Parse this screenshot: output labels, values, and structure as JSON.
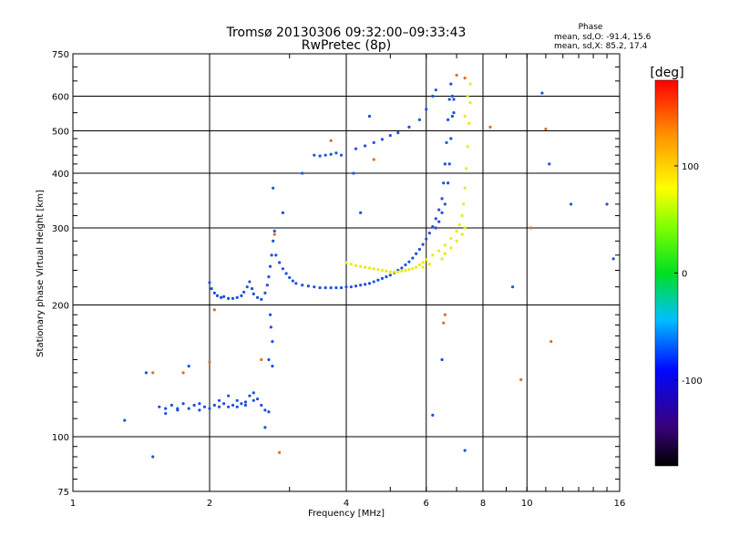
{
  "chart_data": {
    "type": "scatter",
    "title": "Tromsø 20130306 09:32:00–09:33:43",
    "subtitle": "RwPretec (8p)",
    "xlabel": "Frequency [MHz]",
    "ylabel": "Stationary phase Virtual Height [km]",
    "x_scale": "log",
    "y_scale": "log",
    "xlim": [
      1,
      16
    ],
    "ylim": [
      75,
      750
    ],
    "x_ticks": [
      1,
      2,
      4,
      6,
      8,
      10,
      16
    ],
    "y_ticks": [
      75,
      100,
      200,
      300,
      400,
      500,
      600,
      750
    ],
    "x_gridlines": [
      2,
      4,
      6,
      8,
      10
    ],
    "y_gridlines": [
      100,
      200,
      300,
      400,
      500,
      600
    ],
    "phase_stats": {
      "title": "Phase",
      "line_o": "mean, sd,O: -91.4, 15.6",
      "line_x": "mean, sd,X: 85.2, 17.4"
    },
    "colorbar": {
      "label": "[deg]",
      "ticks": [
        100,
        0,
        -100
      ],
      "range": [
        -180,
        180
      ],
      "colormap": "rainbow"
    },
    "series": [
      {
        "mode": "O",
        "color": "#1e50e0",
        "phase": -91,
        "points": [
          [
            1.55,
            117
          ],
          [
            1.6,
            116
          ],
          [
            1.65,
            118
          ],
          [
            1.7,
            116
          ],
          [
            1.75,
            119
          ],
          [
            1.8,
            116
          ],
          [
            1.85,
            118
          ],
          [
            1.9,
            115
          ],
          [
            1.95,
            117
          ],
          [
            2.0,
            116
          ],
          [
            2.05,
            118
          ],
          [
            2.1,
            117
          ],
          [
            2.15,
            119
          ],
          [
            2.2,
            117
          ],
          [
            2.25,
            118
          ],
          [
            2.3,
            117
          ],
          [
            2.35,
            119
          ],
          [
            2.4,
            120
          ],
          [
            2.45,
            124
          ],
          [
            2.5,
            126
          ],
          [
            2.55,
            122
          ],
          [
            2.6,
            118
          ],
          [
            2.65,
            115
          ],
          [
            2.7,
            114
          ],
          [
            1.6,
            113
          ],
          [
            1.7,
            115
          ],
          [
            1.9,
            119
          ],
          [
            2.1,
            121
          ],
          [
            2.2,
            124
          ],
          [
            2.3,
            121
          ],
          [
            2.4,
            118
          ],
          [
            2.5,
            121
          ],
          [
            2.0,
            225
          ],
          [
            2.02,
            218
          ],
          [
            2.05,
            213
          ],
          [
            2.08,
            210
          ],
          [
            2.12,
            208
          ],
          [
            2.15,
            209
          ],
          [
            2.2,
            207
          ],
          [
            2.25,
            207
          ],
          [
            2.3,
            208
          ],
          [
            2.35,
            210
          ],
          [
            2.38,
            214
          ],
          [
            2.42,
            220
          ],
          [
            2.45,
            226
          ],
          [
            2.48,
            218
          ],
          [
            2.5,
            212
          ],
          [
            2.55,
            208
          ],
          [
            2.6,
            206
          ],
          [
            2.65,
            213
          ],
          [
            2.68,
            222
          ],
          [
            2.7,
            232
          ],
          [
            2.72,
            245
          ],
          [
            2.74,
            260
          ],
          [
            2.76,
            280
          ],
          [
            2.78,
            295
          ],
          [
            2.72,
            190
          ],
          [
            2.73,
            178
          ],
          [
            2.75,
            165
          ],
          [
            2.7,
            150
          ],
          [
            2.8,
            260
          ],
          [
            2.85,
            250
          ],
          [
            2.9,
            242
          ],
          [
            2.95,
            236
          ],
          [
            3.0,
            231
          ],
          [
            3.05,
            227
          ],
          [
            3.1,
            224
          ],
          [
            3.2,
            222
          ],
          [
            3.3,
            221
          ],
          [
            3.4,
            220
          ],
          [
            3.5,
            219
          ],
          [
            3.6,
            219
          ],
          [
            3.7,
            219
          ],
          [
            3.8,
            219
          ],
          [
            3.9,
            219
          ],
          [
            4.0,
            220
          ],
          [
            4.1,
            220
          ],
          [
            4.2,
            221
          ],
          [
            4.3,
            222
          ],
          [
            4.4,
            223
          ],
          [
            4.5,
            224
          ],
          [
            4.6,
            226
          ],
          [
            4.7,
            228
          ],
          [
            4.8,
            230
          ],
          [
            4.9,
            232
          ],
          [
            5.0,
            234
          ],
          [
            5.1,
            237
          ],
          [
            5.2,
            240
          ],
          [
            5.3,
            243
          ],
          [
            5.4,
            247
          ],
          [
            5.5,
            251
          ],
          [
            5.6,
            256
          ],
          [
            5.7,
            262
          ],
          [
            5.8,
            268
          ],
          [
            5.9,
            275
          ],
          [
            6.0,
            283
          ],
          [
            6.1,
            292
          ],
          [
            6.2,
            302
          ],
          [
            6.3,
            315
          ],
          [
            6.4,
            330
          ],
          [
            6.5,
            350
          ],
          [
            6.55,
            380
          ],
          [
            6.6,
            420
          ],
          [
            6.65,
            470
          ],
          [
            6.7,
            530
          ],
          [
            6.75,
            590
          ],
          [
            6.8,
            640
          ],
          [
            6.85,
            600
          ],
          [
            6.9,
            550
          ],
          [
            3.4,
            440
          ],
          [
            3.5,
            438
          ],
          [
            3.6,
            440
          ],
          [
            3.7,
            442
          ],
          [
            3.8,
            445
          ],
          [
            3.9,
            440
          ],
          [
            4.2,
            455
          ],
          [
            4.4,
            462
          ],
          [
            4.6,
            470
          ],
          [
            4.8,
            478
          ],
          [
            5.0,
            488
          ],
          [
            5.2,
            495
          ],
          [
            5.5,
            510
          ],
          [
            5.8,
            530
          ],
          [
            6.0,
            560
          ],
          [
            6.2,
            600
          ],
          [
            6.3,
            620
          ],
          [
            6.3,
            300
          ],
          [
            6.4,
            310
          ],
          [
            6.5,
            325
          ],
          [
            6.6,
            340
          ],
          [
            6.7,
            380
          ],
          [
            6.75,
            420
          ],
          [
            6.8,
            480
          ],
          [
            6.85,
            540
          ],
          [
            6.9,
            590
          ]
        ]
      },
      {
        "mode": "X",
        "color": "#e8ec10",
        "phase": 85,
        "points": [
          [
            4.0,
            250
          ],
          [
            4.1,
            248
          ],
          [
            4.2,
            246
          ],
          [
            4.3,
            245
          ],
          [
            4.4,
            244
          ],
          [
            4.5,
            243
          ],
          [
            4.6,
            242
          ],
          [
            4.7,
            241
          ],
          [
            4.8,
            240
          ],
          [
            4.9,
            239
          ],
          [
            5.0,
            238
          ],
          [
            5.1,
            238
          ],
          [
            5.2,
            238
          ],
          [
            5.3,
            239
          ],
          [
            5.4,
            240
          ],
          [
            5.5,
            241
          ],
          [
            5.6,
            242
          ],
          [
            5.7,
            244
          ],
          [
            5.8,
            247
          ],
          [
            5.9,
            250
          ],
          [
            6.0,
            254
          ],
          [
            6.2,
            260
          ],
          [
            6.4,
            266
          ],
          [
            6.6,
            274
          ],
          [
            6.8,
            284
          ],
          [
            7.0,
            295
          ],
          [
            7.1,
            305
          ],
          [
            7.2,
            320
          ],
          [
            7.25,
            340
          ],
          [
            7.3,
            370
          ],
          [
            7.35,
            410
          ],
          [
            7.4,
            460
          ],
          [
            7.45,
            520
          ],
          [
            7.5,
            580
          ],
          [
            7.5,
            640
          ],
          [
            7.4,
            600
          ],
          [
            7.3,
            540
          ],
          [
            6.5,
            255
          ],
          [
            6.6,
            262
          ],
          [
            6.8,
            270
          ],
          [
            7.0,
            280
          ],
          [
            7.2,
            290
          ],
          [
            7.3,
            300
          ],
          [
            5.9,
            244
          ],
          [
            6.1,
            248
          ]
        ]
      },
      {
        "mode": "scattered",
        "color": "#1e50e0",
        "phase": -90,
        "points": [
          [
            1.3,
            109
          ],
          [
            1.45,
            140
          ],
          [
            1.5,
            90
          ],
          [
            1.8,
            145
          ],
          [
            2.65,
            105
          ],
          [
            2.75,
            145
          ],
          [
            2.76,
            370
          ],
          [
            2.9,
            325
          ],
          [
            3.2,
            400
          ],
          [
            4.15,
            400
          ],
          [
            4.3,
            325
          ],
          [
            4.5,
            540
          ],
          [
            6.2,
            112
          ],
          [
            6.5,
            150
          ],
          [
            9.3,
            220
          ],
          [
            10.8,
            610
          ],
          [
            11.2,
            420
          ],
          [
            12.5,
            340
          ],
          [
            15.0,
            340
          ],
          [
            15.5,
            255
          ],
          [
            7.3,
            93
          ]
        ]
      },
      {
        "mode": "scattered-other",
        "color": "#e07020",
        "phase": 150,
        "points": [
          [
            1.5,
            140
          ],
          [
            2.05,
            195
          ],
          [
            2.6,
            150
          ],
          [
            2.78,
            290
          ],
          [
            3.7,
            475
          ],
          [
            4.6,
            430
          ],
          [
            6.55,
            182
          ],
          [
            6.6,
            190
          ],
          [
            7.0,
            670
          ],
          [
            7.3,
            660
          ],
          [
            9.7,
            135
          ],
          [
            11.3,
            165
          ],
          [
            10.2,
            300
          ],
          [
            2.85,
            92
          ],
          [
            8.3,
            510
          ],
          [
            11.0,
            505
          ],
          [
            1.75,
            140
          ],
          [
            2.0,
            148
          ]
        ]
      }
    ]
  }
}
